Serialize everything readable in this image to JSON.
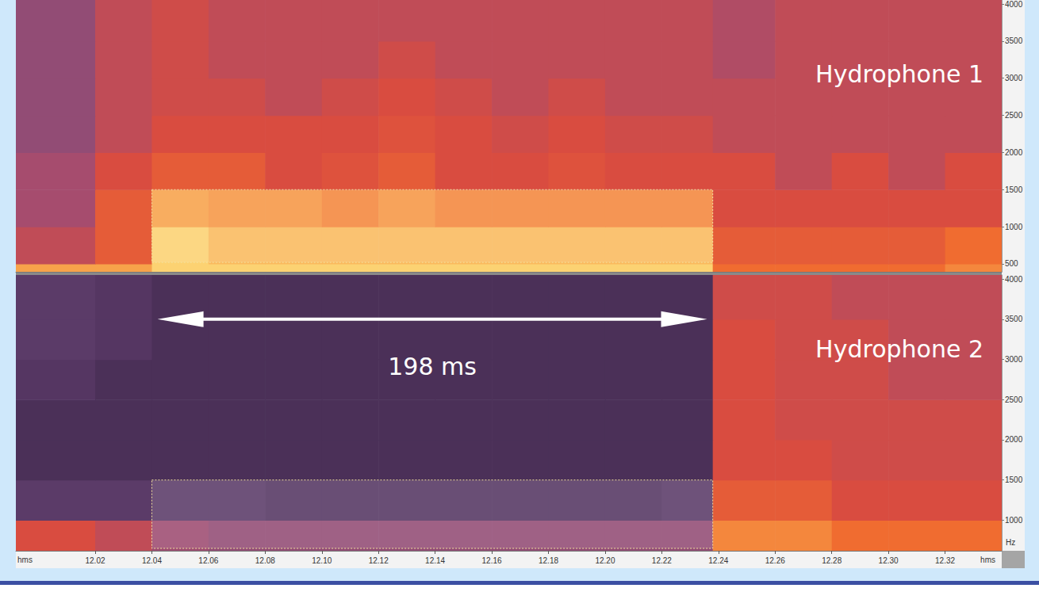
{
  "chart_data": [
    {
      "type": "heatmap",
      "title": "Hydrophone 1",
      "tick_labels": "y",
      "xlim": [
        11.992,
        12.34
      ],
      "ylim": [
        393,
        4053
      ],
      "yticks": [
        500,
        1000,
        1500,
        2000,
        2500,
        3000,
        3500,
        4000
      ],
      "cell_range": [
        0,
        10
      ],
      "x_edges": [
        11.992,
        12.02,
        12.04,
        12.06,
        12.08,
        12.1,
        12.12,
        12.14,
        12.16,
        12.18,
        12.2,
        12.22,
        12.238,
        12.26,
        12.28,
        12.3,
        12.32,
        12.34
      ],
      "y_edges": [
        393,
        500,
        1000,
        1500,
        2000,
        2500,
        3000,
        3500,
        4053
      ],
      "cells": [
        [
          8,
          8,
          9,
          9,
          9,
          9,
          9,
          9,
          9,
          9,
          9,
          9,
          7,
          7,
          7,
          7,
          7.5
        ],
        [
          5.5,
          6.5,
          9,
          8.5,
          8.5,
          8.5,
          8.5,
          8.5,
          8.5,
          8.5,
          8.5,
          8.5,
          6.5,
          6.5,
          6.5,
          6.5,
          7
        ],
        [
          5,
          6.5,
          8,
          7.8,
          7.8,
          7.5,
          7.8,
          7.5,
          7.5,
          7.5,
          7.5,
          7.5,
          6,
          6,
          6,
          6,
          6
        ],
        [
          5,
          6,
          6.5,
          6.5,
          6,
          6.2,
          6.5,
          6,
          6,
          6.2,
          6,
          6,
          6,
          5.5,
          6,
          5.5,
          6
        ],
        [
          4.5,
          5.5,
          6,
          6,
          6,
          6,
          6.2,
          6,
          5.8,
          6,
          5.8,
          5.8,
          5.5,
          5.5,
          5.5,
          5.5,
          5.5
        ],
        [
          4.5,
          5.5,
          5.8,
          5.8,
          5.5,
          5.8,
          6,
          5.8,
          5.5,
          5.8,
          5.5,
          5.5,
          5.5,
          5.5,
          5.5,
          5.5,
          5.5
        ],
        [
          4.5,
          5.5,
          5.8,
          5.5,
          5.5,
          5.5,
          5.8,
          5.5,
          5.5,
          5.5,
          5.5,
          5.5,
          5.2,
          5.5,
          5.5,
          5.5,
          5.5
        ],
        [
          4.5,
          5.5,
          5.8,
          5.5,
          5.5,
          5.5,
          5.5,
          5.5,
          5.5,
          5.5,
          5.5,
          5.5,
          5.2,
          5.5,
          5.5,
          5.5,
          5.5
        ]
      ],
      "box": {
        "x": [
          12.04,
          12.238
        ],
        "y": [
          520,
          1500
        ]
      }
    },
    {
      "type": "heatmap",
      "title": "Hydrophone 2",
      "xlabel": "hms",
      "ylabel": "Hz",
      "xlim": [
        11.992,
        12.34
      ],
      "ylim": [
        620,
        4050
      ],
      "xticks": [
        12.02,
        12.04,
        12.06,
        12.08,
        {
          "value": 12.1,
          "label": "12.10"
        },
        12.12,
        12.14,
        12.16,
        12.18,
        {
          "value": 12.2,
          "label": "12.20"
        },
        12.22,
        12.24,
        12.26,
        12.28,
        {
          "value": 12.3,
          "label": "12.30"
        },
        12.32
      ],
      "yticks": [
        1000,
        1500,
        2000,
        2500,
        3000,
        3500,
        4000
      ],
      "cell_range": [
        0,
        10
      ],
      "x_edges": [
        11.992,
        12.02,
        12.04,
        12.06,
        12.08,
        12.1,
        12.12,
        12.14,
        12.16,
        12.18,
        12.2,
        12.22,
        12.238,
        12.26,
        12.28,
        12.3,
        12.32,
        12.34
      ],
      "y_edges": [
        620,
        1000,
        1500,
        2000,
        2500,
        3000,
        3500,
        4050
      ],
      "cells": [
        [
          6,
          5.5,
          4.8,
          4.5,
          4.5,
          4.5,
          4.5,
          4.5,
          4.5,
          4.5,
          4.5,
          4.5,
          7.5,
          7.5,
          7,
          7,
          7
        ],
        [
          3,
          3,
          3,
          3,
          2.8,
          2.8,
          2.8,
          2.8,
          2.8,
          2.8,
          2.8,
          3,
          6.5,
          6.5,
          6,
          6,
          6
        ],
        [
          2.5,
          2.5,
          2.5,
          2.5,
          2.5,
          2.5,
          2.5,
          2.5,
          2.5,
          2.5,
          2.5,
          2.5,
          6,
          6,
          5.8,
          5.8,
          5.8
        ],
        [
          2.5,
          2.5,
          2.5,
          2.5,
          2.5,
          2.5,
          2.5,
          2.5,
          2.5,
          2.5,
          2.5,
          2.5,
          6,
          5.8,
          5.8,
          5.8,
          5.8
        ],
        [
          2.8,
          2.5,
          2.5,
          2.5,
          2.5,
          2.5,
          2.5,
          2.5,
          2.5,
          2.5,
          2.5,
          2.5,
          6,
          5.8,
          5.8,
          5.5,
          5.5
        ],
        [
          3,
          2.8,
          2.5,
          2.5,
          2.5,
          2.5,
          2.5,
          2.5,
          2.5,
          2.5,
          2.5,
          2.5,
          6,
          5.8,
          5.8,
          5.5,
          5.5
        ],
        [
          3,
          2.8,
          2.5,
          2.5,
          2.5,
          2.5,
          2.5,
          2.5,
          2.5,
          2.5,
          2.5,
          2.5,
          5.8,
          5.8,
          5.5,
          5.5,
          5.5
        ]
      ],
      "box": {
        "x": [
          12.04,
          12.238
        ],
        "y": [
          650,
          1500
        ]
      },
      "arrow": {
        "x": [
          12.042,
          12.236
        ],
        "y": 3500,
        "label": "198 ms"
      }
    }
  ]
}
